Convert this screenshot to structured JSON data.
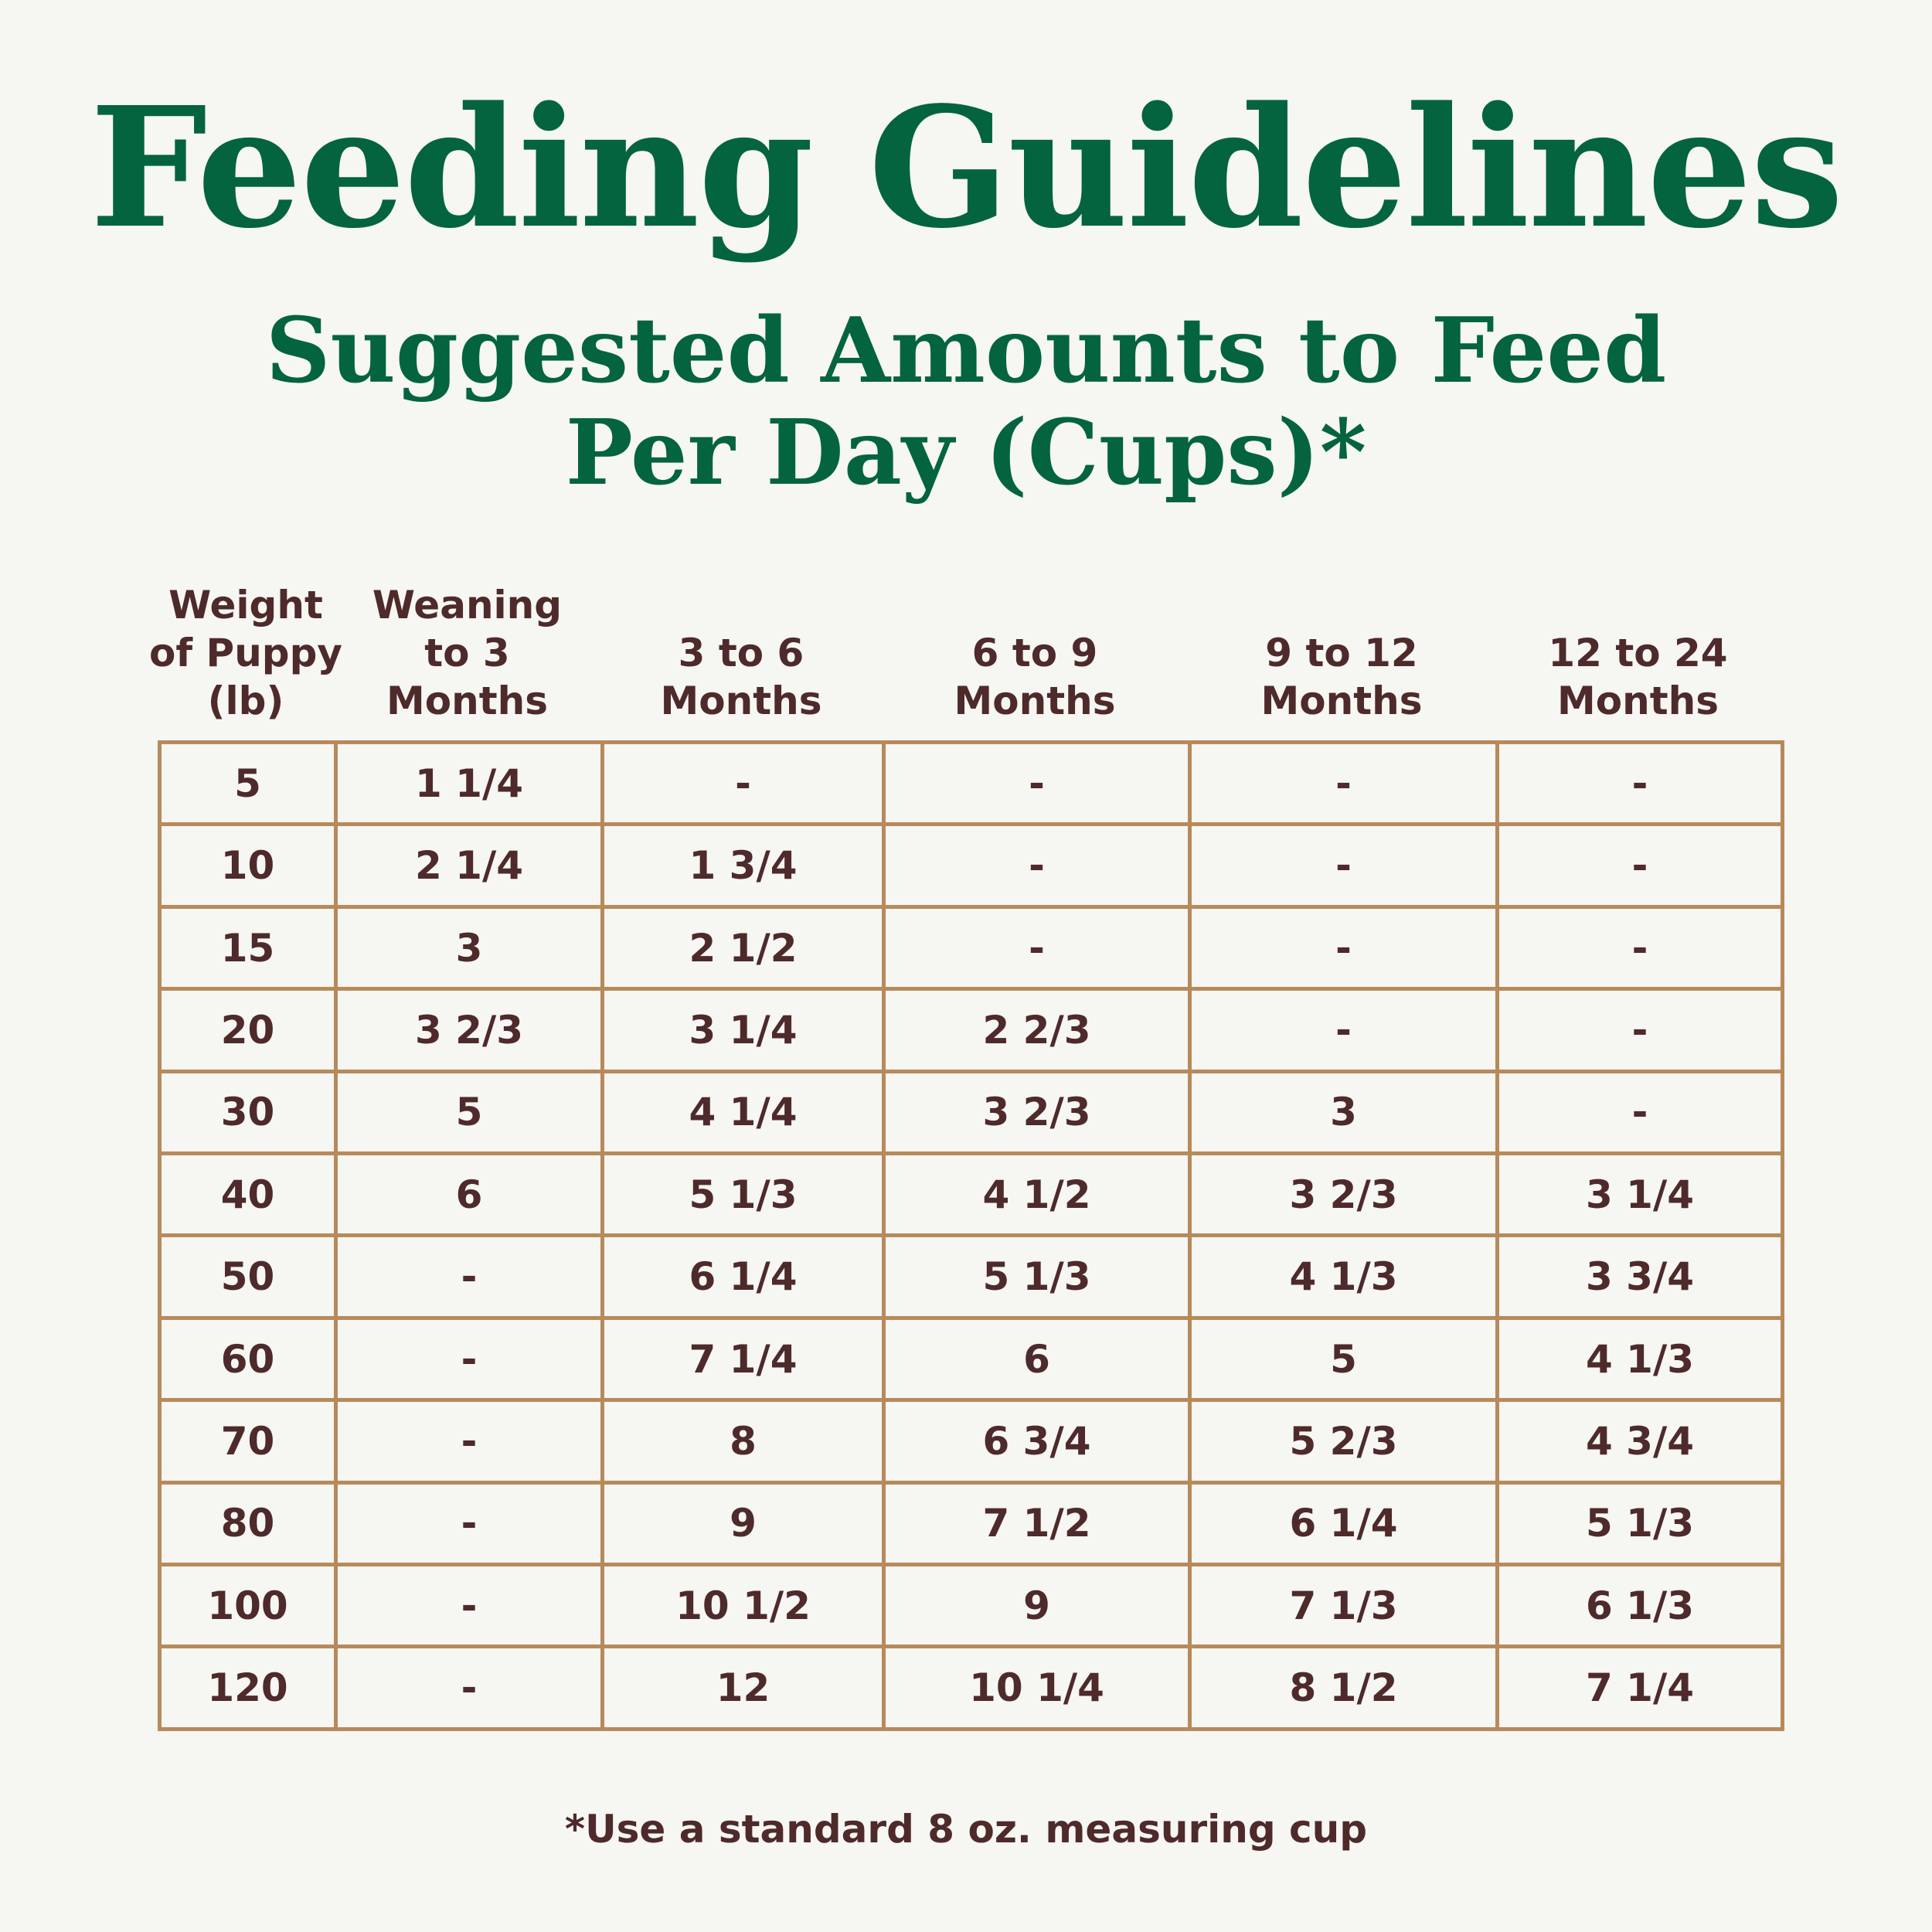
{
  "title": "Feeding Guidelines",
  "subtitle": {
    "line1": "Suggested Amounts to Feed",
    "line2": "Per Day (Cups)*"
  },
  "colors": {
    "heading_green": "#03643f",
    "text_brown": "#4e2a2b",
    "grid_tan": "#b78a5b",
    "background": "#f6f6f2"
  },
  "table": {
    "headers": [
      "Weight\nof Puppy\n(lb)",
      "Weaning\nto 3\nMonths",
      "3 to 6\nMonths",
      "6 to 9\nMonths",
      "9 to 12\nMonths",
      "12 to 24\nMonths"
    ],
    "rows": [
      [
        "5",
        "1 1/4",
        "-",
        "-",
        "-",
        "-"
      ],
      [
        "10",
        "2 1/4",
        "1 3/4",
        "-",
        "-",
        "-"
      ],
      [
        "15",
        "3",
        "2 1/2",
        "-",
        "-",
        "-"
      ],
      [
        "20",
        "3 2/3",
        "3 1/4",
        "2 2/3",
        "-",
        "-"
      ],
      [
        "30",
        "5",
        "4 1/4",
        "3 2/3",
        "3",
        "-"
      ],
      [
        "40",
        "6",
        "5 1/3",
        "4 1/2",
        "3 2/3",
        "3 1/4"
      ],
      [
        "50",
        "-",
        "6 1/4",
        "5 1/3",
        "4 1/3",
        "3 3/4"
      ],
      [
        "60",
        "-",
        "7 1/4",
        "6",
        "5",
        "4 1/3"
      ],
      [
        "70",
        "-",
        "8",
        "6 3/4",
        "5 2/3",
        "4 3/4"
      ],
      [
        "80",
        "-",
        "9",
        "7 1/2",
        "6 1/4",
        "5 1/3"
      ],
      [
        "100",
        "-",
        "10 1/2",
        "9",
        "7 1/3",
        "6 1/3"
      ],
      [
        "120",
        "-",
        "12",
        "10 1/4",
        "8 1/2",
        "7 1/4"
      ]
    ]
  },
  "footnote": "*Use a standard 8 oz. measuring cup"
}
